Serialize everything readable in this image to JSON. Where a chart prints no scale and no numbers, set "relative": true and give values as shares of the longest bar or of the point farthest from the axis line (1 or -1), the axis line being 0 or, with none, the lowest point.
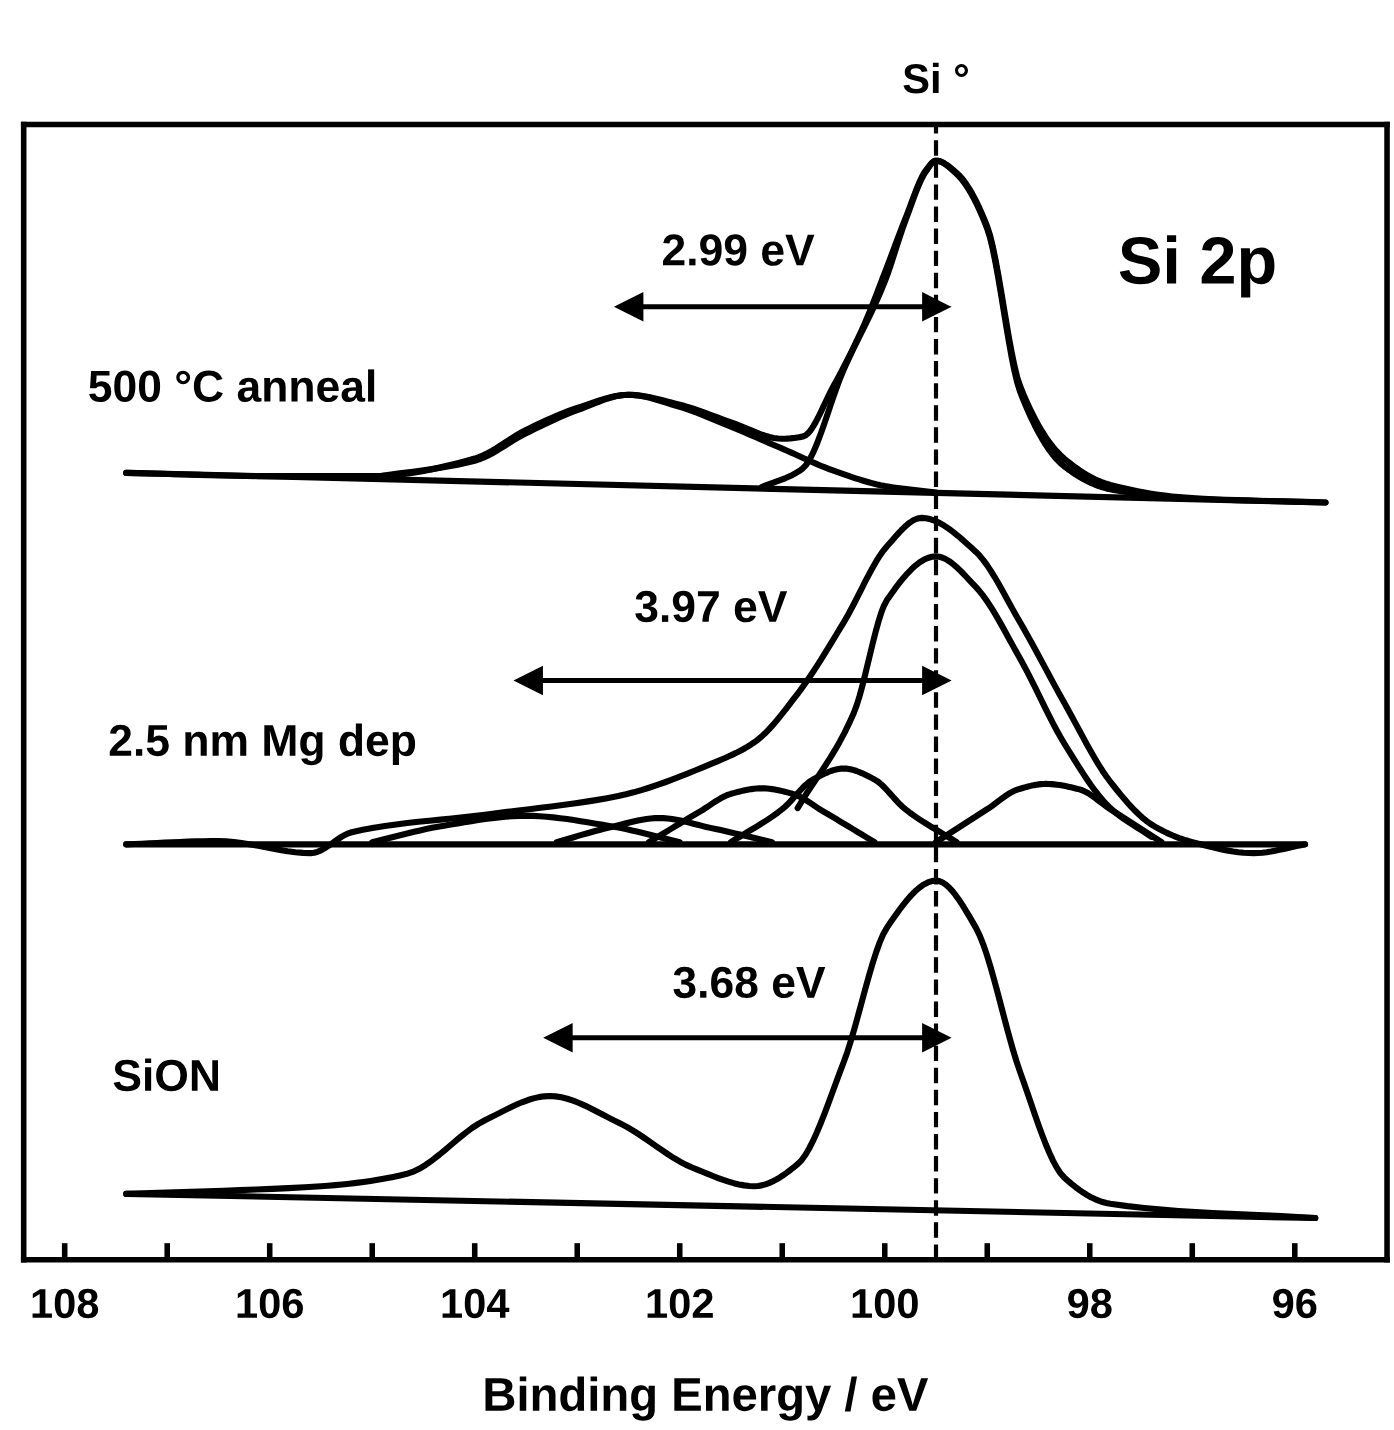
{
  "chart_data": {
    "type": "line",
    "relative": true,
    "xlabel": "Binding Energy / eV",
    "xlim": [
      108.4,
      95.1
    ],
    "xticks": [
      108,
      {
        "value": 107,
        "label": null
      },
      106,
      {
        "value": 105,
        "label": null
      },
      104,
      {
        "value": 103,
        "label": null
      },
      102,
      {
        "value": 101,
        "label": null
      },
      100,
      {
        "value": 99,
        "label": null
      },
      98,
      {
        "value": 97,
        "label": null
      },
      96
    ],
    "tick_labels": "x",
    "grid": false,
    "legend": false,
    "marker": "none",
    "line_style": "solid",
    "series": [
      {
        "color": "#000000",
        "x": [
          107.4,
          106,
          105,
          104,
          103.5,
          103,
          102.5,
          102,
          101.5,
          101,
          100.8,
          100.5,
          100.2,
          100,
          99.8,
          99.6,
          99.5,
          99.3,
          99.0,
          98.68,
          98.25,
          97.8,
          97,
          95.7
        ],
        "values": [
          0.716,
          0.713,
          0.713,
          0.729,
          0.755,
          0.775,
          0.787,
          0.778,
          0.762,
          0.747,
          0.749,
          0.795,
          0.851,
          0.898,
          0.947,
          0.991,
          1.0,
          0.989,
          0.94,
          0.795,
          0.729,
          0.705,
          0.693,
          0.689
        ]
      },
      {
        "color": "#000000",
        "x": [
          107.4,
          95.7
        ],
        "values": [
          0.716,
          0.689
        ]
      },
      {
        "color": "#000000",
        "x": [
          105,
          104,
          103.5,
          103,
          102.5,
          102,
          101.5,
          101,
          100.5,
          100,
          99.5
        ],
        "values": [
          0.712,
          0.727,
          0.752,
          0.773,
          0.787,
          0.776,
          0.758,
          0.738,
          0.718,
          0.704,
          0.698
        ]
      },
      {
        "color": "#000000",
        "x": [
          101.2,
          100.8,
          100.4,
          100,
          99.8,
          99.6,
          99.5,
          99.3,
          99,
          98.68,
          98.25,
          97.8,
          97.4
        ],
        "values": [
          0.703,
          0.72,
          0.81,
          0.89,
          0.945,
          0.99,
          1.0,
          0.988,
          0.938,
          0.79,
          0.722,
          0.701,
          0.696
        ]
      },
      {
        "color": "#000000",
        "x": [
          107.4,
          106.5,
          105.6,
          105.2,
          103.9,
          102.6,
          101.7,
          101.27,
          100.85,
          100.4,
          99.98,
          99.64,
          99.11,
          98.68,
          98.25,
          97.8,
          97.38,
          97.0,
          96.4,
          95.9
        ],
        "values": [
          0.378,
          0.381,
          0.37,
          0.389,
          0.405,
          0.422,
          0.451,
          0.471,
          0.515,
          0.58,
          0.649,
          0.675,
          0.644,
          0.58,
          0.507,
          0.435,
          0.395,
          0.38,
          0.37,
          0.378
        ]
      },
      {
        "color": "#000000",
        "x": [
          107.4,
          95.9
        ],
        "values": [
          0.378,
          0.378
        ]
      },
      {
        "color": "#000000",
        "x": [
          100.85,
          100.3,
          99.98,
          99.5,
          99.11,
          98.68,
          98.25,
          97.8,
          97.4
        ],
        "values": [
          0.411,
          0.498,
          0.6,
          0.64,
          0.612,
          0.547,
          0.47,
          0.411,
          0.385
        ]
      },
      {
        "color": "#000000",
        "x": [
          101.5,
          101.0,
          100.7,
          100.4,
          100.1,
          99.8,
          99.3
        ],
        "values": [
          0.38,
          0.41,
          0.437,
          0.447,
          0.437,
          0.41,
          0.38
        ]
      },
      {
        "color": "#000000",
        "x": [
          102.3,
          101.8,
          101.5,
          101.2,
          100.9,
          100.6,
          100.1
        ],
        "values": [
          0.38,
          0.408,
          0.424,
          0.429,
          0.424,
          0.408,
          0.38
        ]
      },
      {
        "color": "#000000",
        "x": [
          103.2,
          102.7,
          102.2,
          101.7,
          101.1
        ],
        "values": [
          0.38,
          0.393,
          0.402,
          0.393,
          0.38
        ]
      },
      {
        "color": "#000000",
        "x": [
          105.0,
          104.3,
          103.5,
          102.7,
          102.0
        ],
        "values": [
          0.38,
          0.395,
          0.404,
          0.395,
          0.38
        ]
      },
      {
        "color": "#000000",
        "x": [
          99.5,
          99.0,
          98.7,
          98.43,
          98.1,
          97.8,
          97.3
        ],
        "values": [
          0.38,
          0.41,
          0.428,
          0.433,
          0.428,
          0.41,
          0.38
        ]
      },
      {
        "color": "#000000",
        "x": [
          107.4,
          105.5,
          104.67,
          103.9,
          103.27,
          102.58,
          101.88,
          101.27,
          100.85,
          100.4,
          99.98,
          99.5,
          99.11,
          98.68,
          98.25,
          97.8,
          95.8
        ],
        "values": [
          0.06,
          0.067,
          0.078,
          0.127,
          0.149,
          0.124,
          0.084,
          0.067,
          0.087,
          0.18,
          0.302,
          0.345,
          0.302,
          0.171,
          0.075,
          0.051,
          0.038
        ]
      },
      {
        "color": "#000000",
        "x": [
          107.4,
          95.8
        ],
        "values": [
          0.06,
          0.038
        ]
      },
      {
        "color": "#000000",
        "marker": "triangle",
        "x": [
          102.49,
          99.5
        ],
        "values": [
          0.867,
          0.867
        ]
      },
      {
        "color": "#000000",
        "marker": "triangle",
        "x": [
          103.47,
          99.5
        ],
        "values": [
          0.527,
          0.527
        ]
      },
      {
        "color": "#000000",
        "marker": "triangle",
        "x": [
          103.18,
          99.5
        ],
        "values": [
          0.202,
          0.202
        ]
      }
    ],
    "ref_lines": [
      {
        "axis": "x",
        "value": 99.5,
        "label": "Si °",
        "color": "#000000",
        "line_style": "dashed"
      }
    ],
    "annotations": [
      "2.99 eV",
      "3.97 eV",
      "3.68 eV",
      "500 °C anneal",
      "2.5 nm Mg dep",
      "SiON",
      "Si 2p"
    ]
  }
}
